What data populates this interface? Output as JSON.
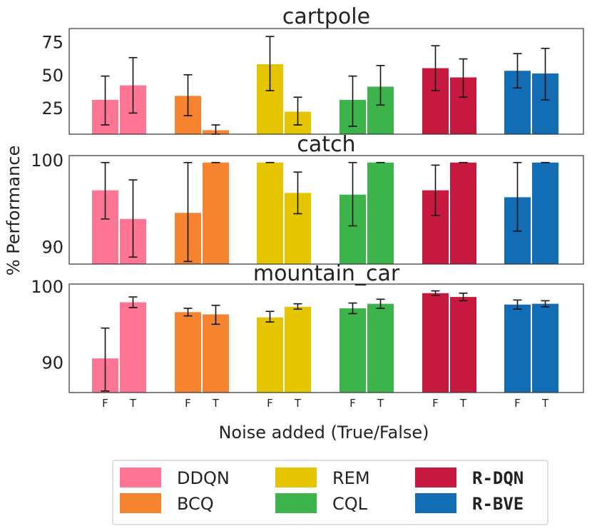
{
  "chart_data": {
    "type": "bar",
    "ylabel": "% Performance",
    "xlabel": "Noise added (True/False)",
    "legend": {
      "placement": "bottom-center",
      "entries": [
        {
          "name": "DDQN",
          "color": "#ff7593",
          "mono": false
        },
        {
          "name": "BCQ",
          "color": "#f5832f",
          "mono": false
        },
        {
          "name": "REM",
          "color": "#e5c500",
          "mono": false
        },
        {
          "name": "CQL",
          "color": "#3cb44b",
          "mono": false
        },
        {
          "name": "R-DQN",
          "color": "#c7183f",
          "mono": true
        },
        {
          "name": "R-BVE",
          "color": "#136db4",
          "mono": true
        }
      ]
    },
    "categories": [
      "F",
      "T"
    ],
    "panels": [
      {
        "title": "cartpole",
        "ylim": [
          5,
          85
        ],
        "yticks": [
          25,
          50,
          75
        ],
        "series": [
          {
            "name": "DDQN",
            "values": [
              31,
              42
            ],
            "err": [
              [
                12,
                49
              ],
              [
                21,
                63
              ]
            ]
          },
          {
            "name": "BCQ",
            "values": [
              34,
              8
            ],
            "err": [
              [
                19,
                50
              ],
              [
                5,
                12
              ]
            ]
          },
          {
            "name": "REM",
            "values": [
              58,
              22
            ],
            "err": [
              [
                38,
                79
              ],
              [
                12,
                33
              ]
            ]
          },
          {
            "name": "CQL",
            "values": [
              31,
              41
            ],
            "err": [
              [
                11,
                49
              ],
              [
                27,
                57
              ]
            ]
          },
          {
            "name": "R-DQN",
            "values": [
              55,
              48
            ],
            "err": [
              [
                38,
                72
              ],
              [
                33,
                62
              ]
            ]
          },
          {
            "name": "R-BVE",
            "values": [
              53,
              51
            ],
            "err": [
              [
                40,
                66
              ],
              [
                31,
                70
              ]
            ]
          }
        ]
      },
      {
        "title": "catch",
        "ylim": [
          88,
          100.5
        ],
        "yticks": [
          90,
          100
        ],
        "series": [
          {
            "name": "DDQN",
            "values": [
              96.5,
              93.2
            ],
            "err": [
              [
                93.2,
                99.7
              ],
              [
                88.8,
                97.7
              ]
            ]
          },
          {
            "name": "BCQ",
            "values": [
              93.9,
              99.7
            ],
            "err": [
              [
                88.3,
                99.7
              ],
              [
                99.7,
                99.7
              ]
            ]
          },
          {
            "name": "REM",
            "values": [
              99.7,
              96.2
            ],
            "err": [
              [
                99.7,
                99.7
              ],
              [
                93.8,
                98.6
              ]
            ]
          },
          {
            "name": "CQL",
            "values": [
              96.0,
              99.7
            ],
            "err": [
              [
                92.4,
                99.7
              ],
              [
                99.7,
                99.7
              ]
            ]
          },
          {
            "name": "R-DQN",
            "values": [
              96.5,
              99.7
            ],
            "err": [
              [
                93.6,
                99.4
              ],
              [
                99.7,
                99.7
              ]
            ]
          },
          {
            "name": "R-BVE",
            "values": [
              95.7,
              99.7
            ],
            "err": [
              [
                91.8,
                99.7
              ],
              [
                99.7,
                99.7
              ]
            ]
          }
        ]
      },
      {
        "title": "mountain_car",
        "ylim": [
          86,
          100.3
        ],
        "yticks": [
          90,
          100
        ],
        "series": [
          {
            "name": "DDQN",
            "values": [
              90.5,
              97.9
            ],
            "err": [
              [
                86.2,
                94.5
              ],
              [
                97.2,
                98.6
              ]
            ]
          },
          {
            "name": "BCQ",
            "values": [
              96.6,
              96.3
            ],
            "err": [
              [
                96.1,
                97.1
              ],
              [
                95.0,
                97.5
              ]
            ]
          },
          {
            "name": "REM",
            "values": [
              95.9,
              97.3
            ],
            "err": [
              [
                95.3,
                96.7
              ],
              [
                97.0,
                97.7
              ]
            ]
          },
          {
            "name": "CQL",
            "values": [
              97.1,
              97.7
            ],
            "err": [
              [
                96.4,
                97.8
              ],
              [
                97.1,
                98.3
              ]
            ]
          },
          {
            "name": "R-DQN",
            "values": [
              99.1,
              98.6
            ],
            "err": [
              [
                98.8,
                99.4
              ],
              [
                98.1,
                99.1
              ]
            ]
          },
          {
            "name": "R-BVE",
            "values": [
              97.6,
              97.7
            ],
            "err": [
              [
                97.0,
                98.2
              ],
              [
                97.3,
                98.1
              ]
            ]
          }
        ]
      }
    ]
  }
}
